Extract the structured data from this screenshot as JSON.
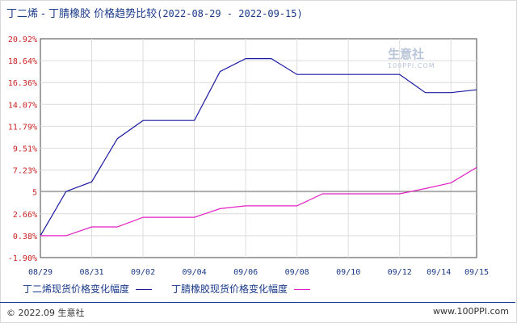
{
  "header": {
    "title": "丁二烯 - 丁腈橡胶 价格趋势比较",
    "date_range": "(2022-08-29 - 2022-09-15)"
  },
  "watermark": {
    "brand": "生意社",
    "url": "100PPI.COM"
  },
  "legend": [
    {
      "label": "丁二烯现货价格变化幅度",
      "color": "#1a1aa0"
    },
    {
      "label": "丁腈橡胶现货价格变化幅度",
      "color": "#e020c0"
    }
  ],
  "footer": {
    "copyright": "© 2022.09 生意社",
    "site": "www.100PPI.com"
  },
  "chart_data": {
    "type": "line",
    "title": "丁二烯 - 丁腈橡胶 价格趋势比较",
    "xlabel": "",
    "ylabel": "",
    "ylim": [
      -1.9,
      20.92
    ],
    "y_ticks": [
      "20.92%",
      "18.64%",
      "16.36%",
      "14.07%",
      "11.79%",
      "9.51%",
      "7.23%",
      "5",
      "2.66%",
      "0.38%",
      "-1.90%"
    ],
    "x_ticks": [
      "08/29",
      "08/31",
      "09/02",
      "09/04",
      "09/06",
      "09/08",
      "09/10",
      "09/12",
      "09/14",
      "09/15"
    ],
    "reference_line": 5,
    "grid": true,
    "legend_position": "bottom",
    "series": [
      {
        "name": "丁二烯现货价格变化幅度",
        "color": "#1a1aa0",
        "points": [
          [
            "08/29",
            0.38
          ],
          [
            "08/30",
            5.0
          ],
          [
            "08/31",
            6.0
          ],
          [
            "09/01",
            10.5
          ],
          [
            "09/02",
            12.4
          ],
          [
            "09/03",
            12.4
          ],
          [
            "09/04",
            12.4
          ],
          [
            "09/05",
            17.5
          ],
          [
            "09/06",
            18.85
          ],
          [
            "09/07",
            18.85
          ],
          [
            "09/08",
            17.2
          ],
          [
            "09/09",
            17.2
          ],
          [
            "09/10",
            17.2
          ],
          [
            "09/11",
            17.2
          ],
          [
            "09/12",
            17.2
          ],
          [
            "09/13",
            15.3
          ],
          [
            "09/14",
            15.3
          ],
          [
            "09/15",
            15.6
          ]
        ]
      },
      {
        "name": "丁腈橡胶现货价格变化幅度",
        "color": "#e020c0",
        "points": [
          [
            "08/29",
            0.38
          ],
          [
            "08/30",
            0.38
          ],
          [
            "08/31",
            1.3
          ],
          [
            "09/01",
            1.3
          ],
          [
            "09/02",
            2.3
          ],
          [
            "09/03",
            2.3
          ],
          [
            "09/04",
            2.3
          ],
          [
            "09/05",
            3.2
          ],
          [
            "09/06",
            3.5
          ],
          [
            "09/07",
            3.5
          ],
          [
            "09/08",
            3.5
          ],
          [
            "09/09",
            4.75
          ],
          [
            "09/10",
            4.75
          ],
          [
            "09/11",
            4.75
          ],
          [
            "09/12",
            4.75
          ],
          [
            "09/13",
            5.3
          ],
          [
            "09/14",
            5.9
          ],
          [
            "09/15",
            7.5
          ]
        ]
      }
    ]
  }
}
